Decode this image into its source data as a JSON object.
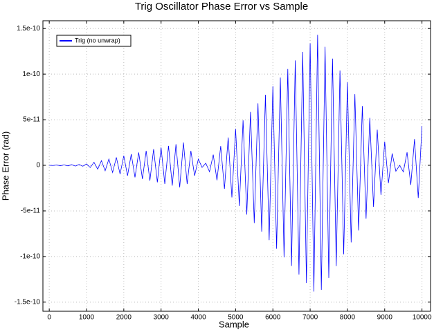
{
  "chart_data": {
    "type": "line",
    "title": "Trig Oscillator Phase Error vs Sample",
    "x_label": "Sample",
    "y_label": "Phase Error (rad)",
    "x": [
      0,
      100,
      200,
      300,
      400,
      500,
      600,
      700,
      800,
      900,
      1000,
      1100,
      1200,
      1300,
      1400,
      1500,
      1600,
      1700,
      1800,
      1900,
      2000,
      2100,
      2200,
      2300,
      2400,
      2500,
      2600,
      2700,
      2800,
      2900,
      3000,
      3100,
      3200,
      3300,
      3400,
      3500,
      3600,
      3700,
      3800,
      3900,
      4000,
      4100,
      4200,
      4300,
      4400,
      4500,
      4600,
      4700,
      4800,
      4900,
      5000,
      5100,
      5200,
      5300,
      5400,
      5500,
      5600,
      5700,
      5800,
      5900,
      6000,
      6100,
      6200,
      6300,
      6400,
      6500,
      6600,
      6700,
      6800,
      6900,
      7000,
      7100,
      7200,
      7300,
      7400,
      7500,
      7600,
      7700,
      7800,
      7900,
      8000,
      8100,
      8200,
      8300,
      8400,
      8500,
      8600,
      8700,
      8800,
      8900,
      9000,
      9100,
      9200,
      9300,
      9400,
      9500,
      9600,
      9700,
      9800,
      9900,
      10000
    ],
    "series": [
      {
        "name": "Trig (no unwrap)",
        "color": "#0000ff",
        "values": [
          0,
          -2e-13,
          3e-13,
          -4e-13,
          5e-13,
          -6e-13,
          7e-13,
          -8e-13,
          9e-13,
          -1e-12,
          1.5e-12,
          -2.4e-12,
          3.3e-12,
          -4.2e-12,
          5.1e-12,
          -6e-12,
          6.9e-12,
          -7.8e-12,
          8.7e-12,
          -9.6e-12,
          1.05e-11,
          -1.14e-11,
          1.23e-11,
          -1.32e-11,
          1.41e-11,
          -1.5e-11,
          1.59e-11,
          -1.68e-11,
          1.77e-11,
          -1.86e-11,
          1.95e-11,
          -2.04e-11,
          2.13e-11,
          -2.22e-11,
          2.31e-11,
          -2.41e-11,
          2.5e-11,
          -2.05e-11,
          1.59e-11,
          -1.14e-11,
          6.8e-12,
          -2.3e-12,
          2.3e-12,
          -7e-12,
          1.17e-11,
          -1.64e-11,
          2.11e-11,
          -2.58e-11,
          3.05e-11,
          -3.52e-11,
          3.99e-11,
          -4.46e-11,
          4.93e-11,
          -5.4e-11,
          5.86e-11,
          -6.33e-11,
          6.8e-11,
          -7.27e-11,
          7.74e-11,
          -8.21e-11,
          8.68e-11,
          -9.15e-11,
          9.62e-11,
          -1.009e-10,
          1.056e-10,
          -1.103e-10,
          1.15e-10,
          -1.197e-10,
          1.244e-10,
          -1.29e-10,
          1.337e-10,
          -1.384e-10,
          1.43e-10,
          -1.365e-10,
          1.3e-10,
          -1.235e-10,
          1.17e-10,
          -1.105e-10,
          1.04e-10,
          -9.75e-11,
          9.1e-11,
          -8.45e-11,
          7.8e-11,
          -7.15e-11,
          6.5e-11,
          -5.85e-11,
          5.2e-11,
          -4.55e-11,
          3.9e-11,
          -3.25e-11,
          2.6e-11,
          -1.95e-11,
          1.3e-11,
          -6.5e-12,
          0,
          -7.2e-12,
          1.43e-11,
          -2.15e-11,
          2.87e-11,
          -3.58e-11,
          4.3e-11
        ]
      }
    ],
    "xlim": [
      -170,
      10230
    ],
    "xticks": [
      0,
      1000,
      2000,
      3000,
      4000,
      5000,
      6000,
      7000,
      8000,
      9000,
      10000
    ],
    "ylim": [
      -1.6e-10,
      1.585e-10
    ],
    "yticks": [
      -1.5e-10,
      -1e-10,
      -5e-11,
      0,
      5e-11,
      1e-10,
      1.5e-10
    ],
    "grid": true,
    "legend": "upper-left"
  }
}
